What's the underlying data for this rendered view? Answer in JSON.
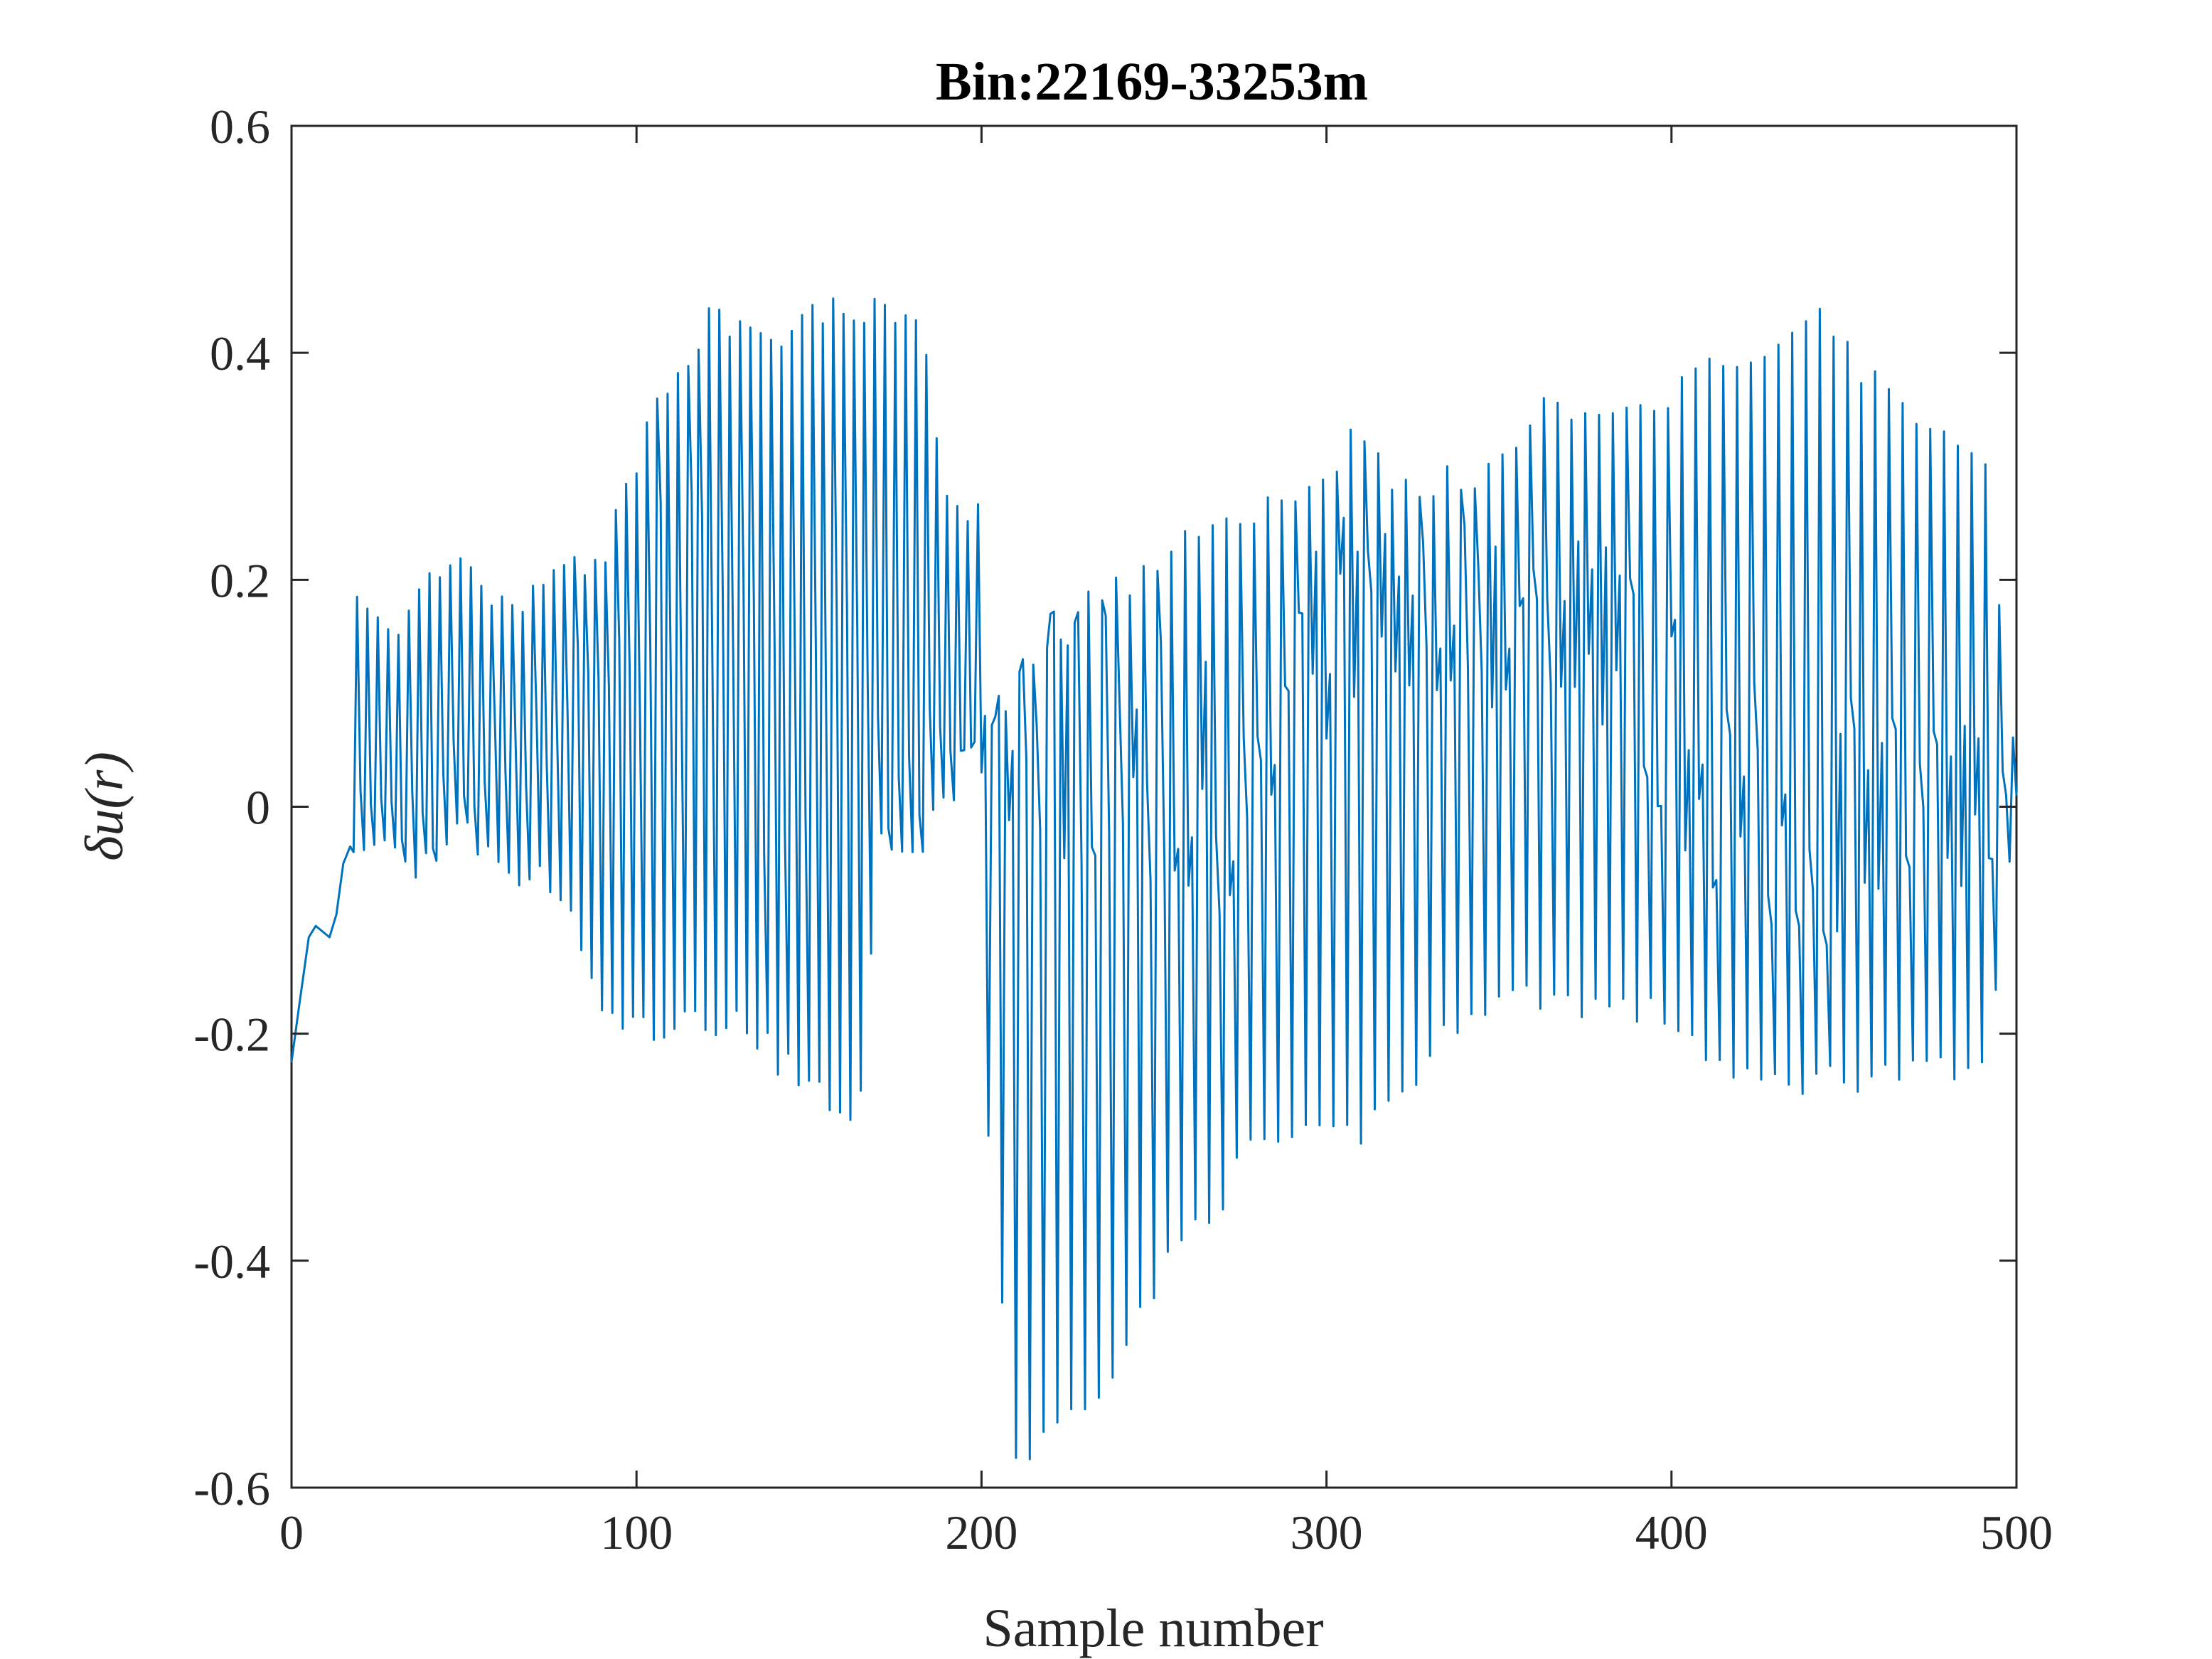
{
  "chart_data": {
    "type": "line",
    "title": "Bin:22169-33253m",
    "xlabel": "Sample number",
    "ylabel": "δu(r)",
    "xlim": [
      0,
      500
    ],
    "ylim": [
      -0.6,
      0.6
    ],
    "xticks": [
      0,
      100,
      200,
      300,
      400,
      500
    ],
    "xtick_labels": [
      "0",
      "100",
      "200",
      "300",
      "400",
      "500"
    ],
    "yticks": [
      -0.6,
      -0.4,
      -0.2,
      0,
      0.2,
      0.4,
      0.6
    ],
    "ytick_labels": [
      "-0.6",
      "-0.4",
      "-0.2",
      "0",
      "0.2",
      "0.4",
      "0.6"
    ],
    "grid": false,
    "legend": "none",
    "series": [
      {
        "color": "#0072BD",
        "style": "sawtooth-oscillation",
        "x_start": 0,
        "x_end": 500,
        "initial_segment": [
          [
            0,
            -0.225
          ],
          [
            2,
            -0.18
          ],
          [
            5,
            -0.115
          ],
          [
            7,
            -0.105
          ],
          [
            9,
            -0.11
          ],
          [
            11,
            -0.115
          ],
          [
            13,
            -0.095
          ],
          [
            15,
            -0.05
          ],
          [
            17,
            -0.035
          ],
          [
            18,
            -0.04
          ]
        ],
        "peak_envelope": [
          [
            19,
            0.185
          ],
          [
            30,
            0.17
          ],
          [
            40,
            0.23
          ],
          [
            50,
            0.23
          ],
          [
            60,
            0.185
          ],
          [
            80,
            0.225
          ],
          [
            90,
            0.235
          ],
          [
            100,
            0.32
          ],
          [
            110,
            0.39
          ],
          [
            120,
            0.44
          ],
          [
            140,
            0.43
          ],
          [
            160,
            0.455
          ],
          [
            170,
            0.455
          ],
          [
            182,
            0.45
          ],
          [
            190,
            0.28
          ],
          [
            199,
            0.28
          ],
          [
            201,
            0.08
          ],
          [
            210,
            0.12
          ],
          [
            220,
            0.17
          ],
          [
            240,
            0.21
          ],
          [
            260,
            0.25
          ],
          [
            280,
            0.28
          ],
          [
            300,
            0.3
          ],
          [
            310,
            0.355
          ],
          [
            320,
            0.3
          ],
          [
            340,
            0.3
          ],
          [
            360,
            0.36
          ],
          [
            380,
            0.37
          ],
          [
            400,
            0.38
          ],
          [
            420,
            0.41
          ],
          [
            440,
            0.44
          ],
          [
            446,
            0.445
          ],
          [
            460,
            0.38
          ],
          [
            480,
            0.35
          ],
          [
            490,
            0.33
          ],
          [
            500,
            0.06
          ]
        ],
        "trough_envelope": [
          [
            19,
            -0.045
          ],
          [
            30,
            -0.055
          ],
          [
            40,
            -0.07
          ],
          [
            50,
            -0.035
          ],
          [
            60,
            -0.075
          ],
          [
            70,
            -0.075
          ],
          [
            80,
            -0.1
          ],
          [
            90,
            -0.2
          ],
          [
            100,
            -0.21
          ],
          [
            110,
            -0.21
          ],
          [
            130,
            -0.2
          ],
          [
            145,
            -0.25
          ],
          [
            160,
            -0.275
          ],
          [
            165,
            -0.28
          ],
          [
            170,
            -0.05
          ],
          [
            182,
            -0.05
          ],
          [
            190,
            -0.015
          ],
          [
            199,
            0.06
          ],
          [
            201,
            -0.27
          ],
          [
            210,
            -0.59
          ],
          [
            220,
            -0.57
          ],
          [
            240,
            -0.5
          ],
          [
            250,
            -0.44
          ],
          [
            260,
            -0.39
          ],
          [
            270,
            -0.355
          ],
          [
            280,
            -0.31
          ],
          [
            300,
            -0.31
          ],
          [
            310,
            -0.3
          ],
          [
            330,
            -0.24
          ],
          [
            340,
            -0.19
          ],
          [
            360,
            -0.18
          ],
          [
            380,
            -0.19
          ],
          [
            400,
            -0.2
          ],
          [
            420,
            -0.26
          ],
          [
            440,
            -0.255
          ],
          [
            460,
            -0.25
          ],
          [
            480,
            -0.25
          ],
          [
            490,
            -0.25
          ],
          [
            500,
            -0.03
          ]
        ],
        "mid_envelope": [
          [
            19,
            -0.02
          ],
          [
            40,
            0.0
          ],
          [
            60,
            0.05
          ],
          [
            80,
            0.08
          ],
          [
            100,
            0.15
          ],
          [
            120,
            0.2
          ],
          [
            140,
            0.05
          ],
          [
            160,
            0.08
          ],
          [
            180,
            0.0
          ],
          [
            199,
            0.06
          ],
          [
            210,
            0.1
          ],
          [
            240,
            0.05
          ],
          [
            280,
            0.0
          ],
          [
            300,
            0.15
          ],
          [
            340,
            0.18
          ],
          [
            380,
            0.15
          ],
          [
            420,
            0.0
          ],
          [
            460,
            0.0
          ],
          [
            500,
            0.0
          ]
        ]
      }
    ]
  }
}
